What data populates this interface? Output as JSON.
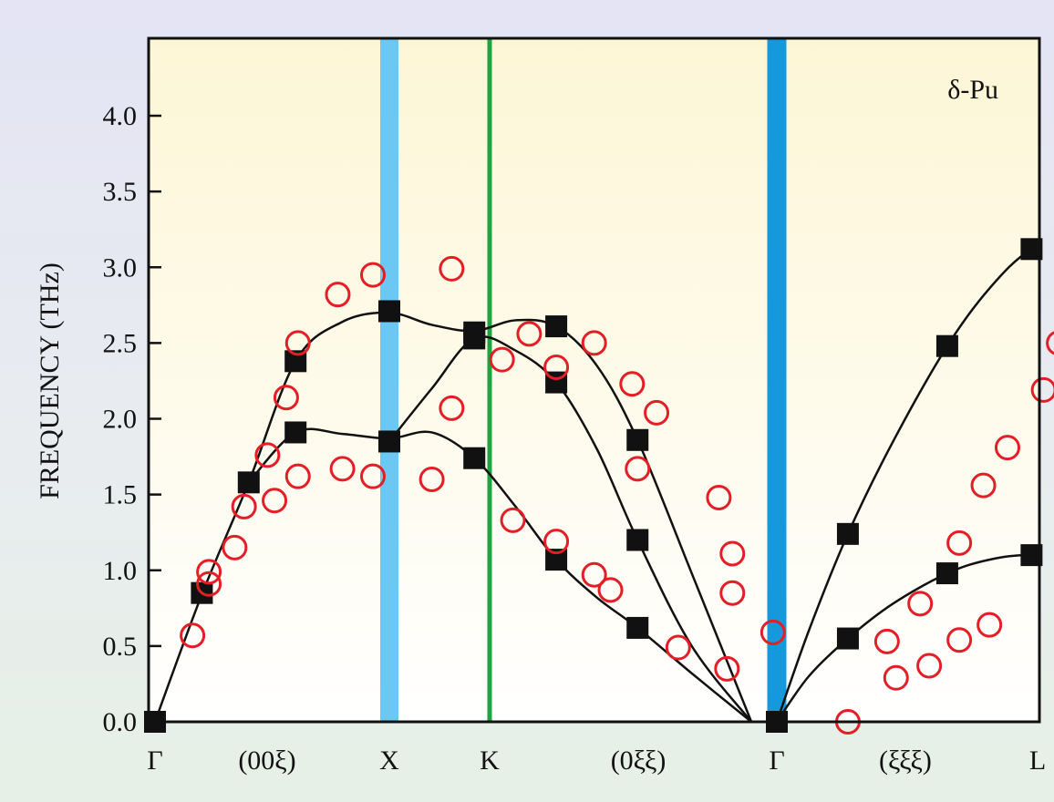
{
  "chart_data": {
    "type": "scatter",
    "title": "",
    "annotation": "δ-Pu",
    "ylabel": "FREQUENCY (THz)",
    "xlabel": "",
    "ylim": [
      0,
      4.5
    ],
    "yticks": [
      "0.0",
      "0.5",
      "1.0",
      "1.5",
      "2.0",
      "2.5",
      "3.0",
      "3.5",
      "4.0"
    ],
    "xlim": [
      0,
      5.31
    ],
    "x_points": [
      {
        "label": "Γ",
        "x": 0
      },
      {
        "label": "X",
        "x": 1.0
      },
      {
        "label": "K",
        "x": 1.354
      },
      {
        "label": "Γ",
        "x": 2.414
      },
      {
        "label": "L",
        "x": 3.28
      }
    ],
    "direction_labels": [
      {
        "label": "(00ξ)",
        "x": 0.5
      },
      {
        "label": "(0ξξ)",
        "x": 1.9
      },
      {
        "label": "(ξξξ)",
        "x": 2.85
      }
    ],
    "vertical_lines": [
      {
        "at": "X",
        "color": "#6cc8f2"
      },
      {
        "at": "K",
        "color": "#1aa640"
      },
      {
        "at": "Γ",
        "color": "#1598dc"
      }
    ],
    "colors": {
      "plot_top": "#fdf6d6",
      "plot_bottom": "#ffffff",
      "measured": "#e41e26",
      "calculated": "#111111"
    },
    "series": [
      {
        "marker": "filled-square",
        "values": [
          [
            0.0,
            0.0
          ],
          [
            0.2,
            0.85
          ],
          [
            0.4,
            1.58
          ],
          [
            0.6,
            2.38
          ],
          [
            0.6,
            1.91
          ],
          [
            1.0,
            2.71
          ],
          [
            1.0,
            1.85
          ],
          [
            1.3,
            2.57
          ],
          [
            1.3,
            2.53
          ],
          [
            1.3,
            1.74
          ],
          [
            1.6,
            2.61
          ],
          [
            1.6,
            2.24
          ],
          [
            1.6,
            1.07
          ],
          [
            1.9,
            1.86
          ],
          [
            1.9,
            1.2
          ],
          [
            1.9,
            0.62
          ],
          [
            2.414,
            0.0
          ],
          [
            2.65,
            1.24
          ],
          [
            2.65,
            0.55
          ],
          [
            2.98,
            2.48
          ],
          [
            2.98,
            0.98
          ],
          [
            3.26,
            3.12
          ],
          [
            3.26,
            1.1
          ],
          [
            3.64,
            3.3
          ],
          [
            3.64,
            0.98
          ]
        ]
      },
      {
        "marker": "open-circle",
        "values": [
          [
            0.16,
            0.57
          ],
          [
            0.23,
            0.99
          ],
          [
            0.23,
            0.91
          ],
          [
            0.34,
            1.15
          ],
          [
            0.38,
            1.42
          ],
          [
            0.48,
            1.76
          ],
          [
            0.51,
            1.46
          ],
          [
            0.56,
            2.14
          ],
          [
            0.61,
            2.5
          ],
          [
            0.61,
            1.62
          ],
          [
            0.78,
            2.82
          ],
          [
            0.8,
            1.67
          ],
          [
            0.93,
            2.95
          ],
          [
            0.93,
            1.62
          ],
          [
            1.15,
            1.6
          ],
          [
            1.22,
            2.99
          ],
          [
            1.22,
            2.07
          ],
          [
            1.4,
            2.39
          ],
          [
            1.44,
            1.33
          ],
          [
            1.5,
            2.56
          ],
          [
            1.6,
            2.34
          ],
          [
            1.6,
            1.19
          ],
          [
            1.74,
            2.5
          ],
          [
            1.74,
            0.97
          ],
          [
            1.8,
            0.87
          ],
          [
            1.88,
            2.23
          ],
          [
            1.9,
            1.67
          ],
          [
            1.97,
            2.04
          ],
          [
            2.05,
            0.49
          ],
          [
            2.2,
            1.48
          ],
          [
            2.25,
            1.11
          ],
          [
            2.25,
            0.85
          ],
          [
            2.23,
            0.35
          ],
          [
            2.4,
            0.59
          ],
          [
            2.65,
            0.0
          ],
          [
            2.78,
            0.53
          ],
          [
            2.81,
            0.29
          ],
          [
            2.89,
            0.78
          ],
          [
            2.92,
            0.37
          ],
          [
            3.02,
            1.18
          ],
          [
            3.02,
            0.54
          ],
          [
            3.1,
            1.56
          ],
          [
            3.12,
            0.64
          ],
          [
            3.18,
            1.81
          ],
          [
            3.3,
            2.19
          ],
          [
            3.35,
            2.5
          ],
          [
            3.4,
            2.63
          ],
          [
            3.42,
            0.69
          ],
          [
            3.48,
            2.9
          ],
          [
            3.52,
            0.57
          ],
          [
            3.64,
            3.13
          ],
          [
            3.64,
            0.47
          ]
        ]
      }
    ],
    "curves": [
      [
        [
          0,
          0
        ],
        [
          0.2,
          0.84
        ],
        [
          0.4,
          1.58
        ],
        [
          0.6,
          2.38
        ],
        [
          0.8,
          2.64
        ],
        [
          1.0,
          2.7
        ],
        [
          1.15,
          2.62
        ],
        [
          1.3,
          2.58
        ],
        [
          1.45,
          2.65
        ],
        [
          1.6,
          2.61
        ],
        [
          1.75,
          2.35
        ],
        [
          1.9,
          1.86
        ],
        [
          2.1,
          0.98
        ],
        [
          2.32,
          0
        ]
      ],
      [
        [
          0.4,
          1.58
        ],
        [
          0.6,
          1.91
        ],
        [
          0.8,
          1.9
        ],
        [
          1.0,
          1.87
        ],
        [
          1.15,
          1.91
        ],
        [
          1.3,
          1.74
        ],
        [
          1.45,
          1.42
        ],
        [
          1.6,
          1.07
        ],
        [
          1.75,
          0.82
        ],
        [
          1.9,
          0.62
        ],
        [
          2.1,
          0.32
        ],
        [
          2.32,
          0
        ]
      ],
      [
        [
          1.0,
          1.85
        ],
        [
          1.15,
          2.2
        ],
        [
          1.3,
          2.53
        ],
        [
          1.45,
          2.45
        ],
        [
          1.6,
          2.24
        ],
        [
          1.75,
          1.8
        ],
        [
          1.9,
          1.2
        ],
        [
          2.1,
          0.5
        ],
        [
          2.32,
          0
        ]
      ],
      [
        [
          2.414,
          0
        ],
        [
          2.52,
          0.6
        ],
        [
          2.65,
          1.24
        ],
        [
          2.8,
          1.85
        ],
        [
          2.98,
          2.48
        ],
        [
          3.12,
          2.86
        ],
        [
          3.26,
          3.12
        ],
        [
          3.45,
          3.27
        ],
        [
          3.64,
          3.3
        ]
      ],
      [
        [
          2.414,
          0
        ],
        [
          2.52,
          0.3
        ],
        [
          2.65,
          0.55
        ],
        [
          2.8,
          0.78
        ],
        [
          2.98,
          0.98
        ],
        [
          3.12,
          1.07
        ],
        [
          3.26,
          1.1
        ],
        [
          3.45,
          1.06
        ],
        [
          3.64,
          0.98
        ]
      ]
    ]
  }
}
